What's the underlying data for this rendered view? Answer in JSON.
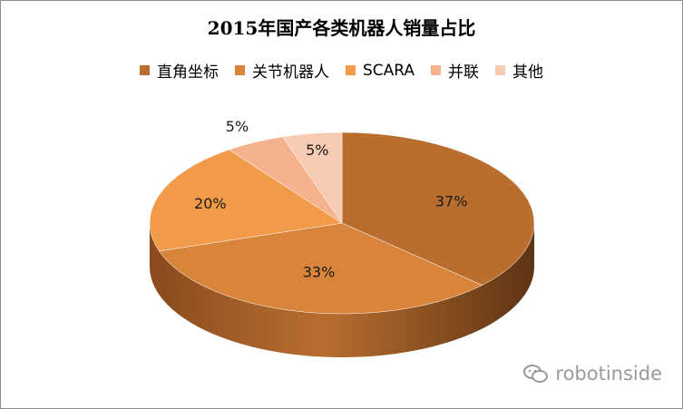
{
  "chart_data": {
    "type": "pie",
    "title": "2015年国产各类机器人销量占比",
    "categories": [
      "直角坐标",
      "关节机器人",
      "SCARA",
      "并联",
      "其他"
    ],
    "values": [
      37,
      33,
      20,
      5,
      5
    ],
    "labels": [
      "37%",
      "33%",
      "20%",
      "5%",
      "5%"
    ],
    "colors": [
      "#b96e30",
      "#d8843a",
      "#f19a48",
      "#f4b38c",
      "#f7ccb3"
    ],
    "legend_position": "top",
    "style": "3d"
  },
  "watermark": {
    "text": "robotinside"
  }
}
